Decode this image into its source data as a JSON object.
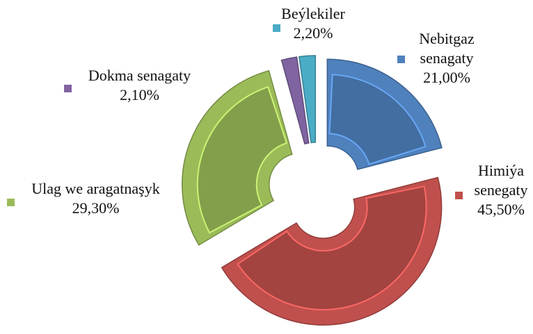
{
  "chart_data": {
    "type": "pie",
    "categories": [
      "Nebitgaz senagaty",
      "Himiýa senegaty",
      "Ulag we aragatnaşyk",
      "Dokma senagaty",
      "Beýlekiler"
    ],
    "values": [
      21.0,
      45.5,
      29.3,
      2.1,
      2.2
    ],
    "value_labels": [
      "21,00%",
      "45,50%",
      "29,30%",
      "2,10%",
      "2,20%"
    ],
    "colors": [
      "#4f81bd",
      "#c0504d",
      "#9bbb59",
      "#8064a2",
      "#4bacc6"
    ]
  }
}
